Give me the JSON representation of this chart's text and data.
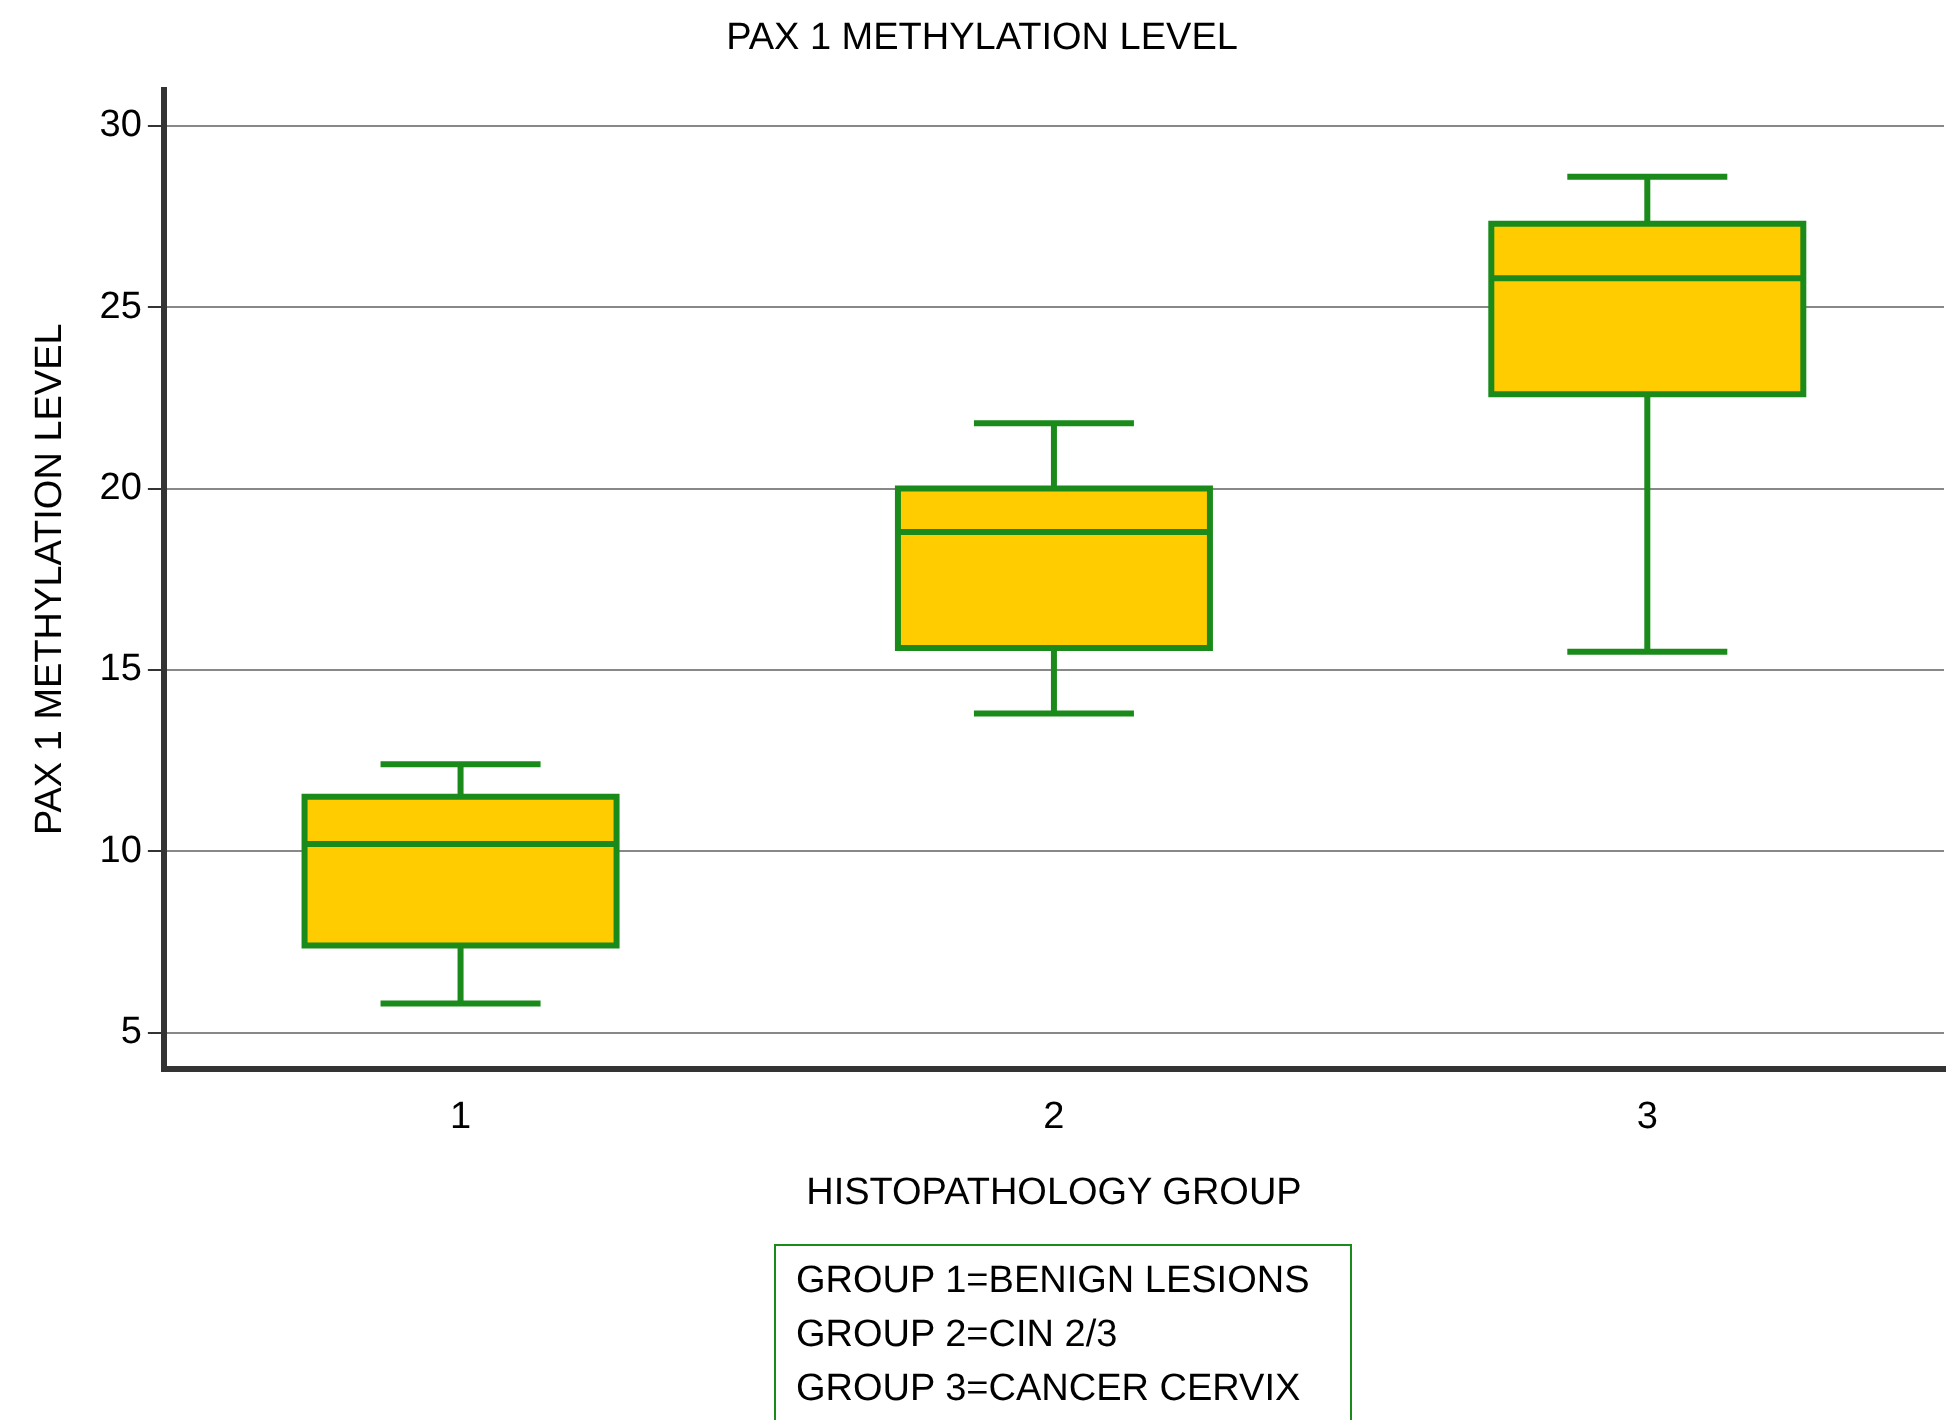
{
  "chart_data": {
    "type": "box",
    "title": "PAX 1 METHYLATION LEVEL",
    "xlabel": "HISTOPATHOLOGY GROUP",
    "ylabel": "PAX 1 METHYLATION LEVEL",
    "categories": [
      "1",
      "2",
      "3"
    ],
    "series": [
      {
        "color": "#ffcc00",
        "boxes": [
          {
            "low": 5.8,
            "q1": 7.4,
            "median": 10.2,
            "q3": 11.5,
            "high": 12.4
          },
          {
            "low": 13.8,
            "q1": 15.6,
            "median": 18.8,
            "q3": 20.0,
            "high": 21.8
          },
          {
            "low": 15.5,
            "q1": 22.6,
            "median": 25.8,
            "q3": 27.3,
            "high": 28.6
          }
        ]
      }
    ],
    "ylim": [
      4,
      31
    ],
    "yticks": [
      5,
      10,
      15,
      20,
      25,
      30
    ],
    "grid": "y",
    "annotations": [
      "GROUP 1=BENIGN LESIONS",
      "GROUP 2=CIN 2/3",
      "GROUP 3=CANCER CERVIX"
    ]
  }
}
